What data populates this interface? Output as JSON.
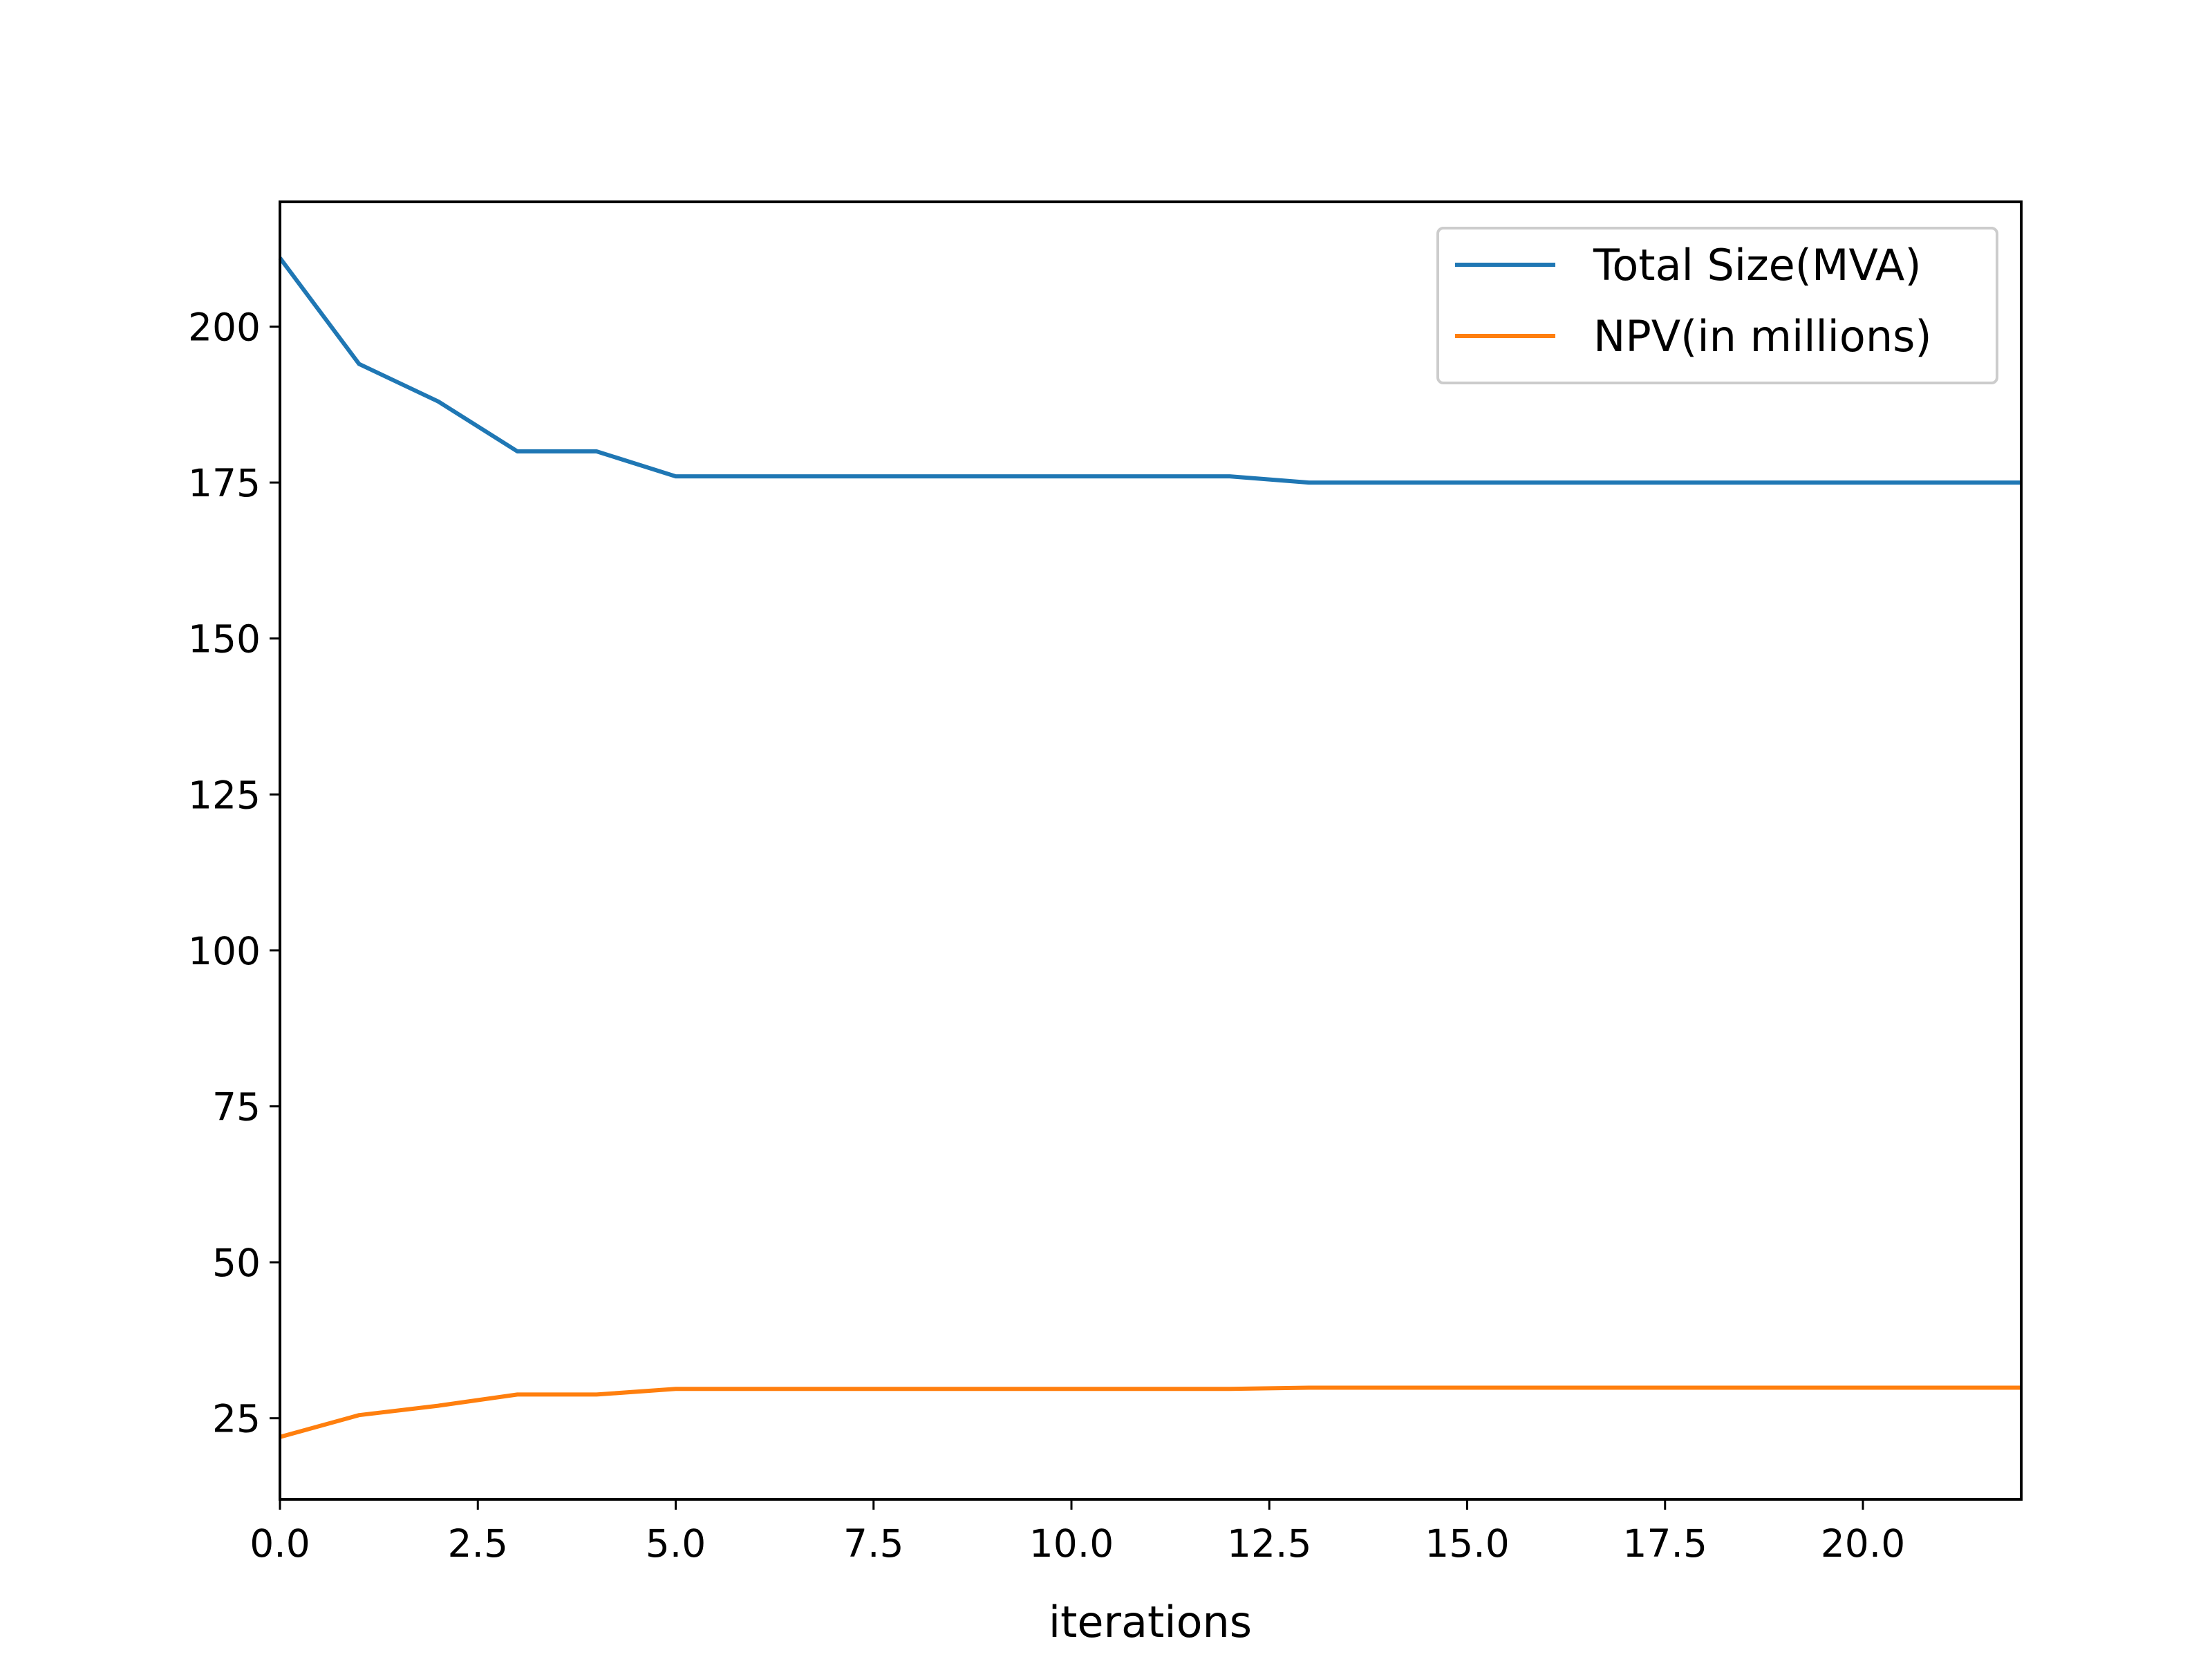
{
  "chart_data": {
    "type": "line",
    "title": "",
    "xlabel": "iterations",
    "ylabel": "",
    "xlim": [
      0,
      22
    ],
    "ylim": [
      12,
      220
    ],
    "xticks": [
      0,
      2.5,
      5,
      7.5,
      10,
      12.5,
      15,
      17.5,
      20
    ],
    "xtick_labels": [
      "0.0",
      "2.5",
      "5.0",
      "7.5",
      "10.0",
      "12.5",
      "15.0",
      "17.5",
      "20.0"
    ],
    "yticks": [
      25,
      50,
      75,
      100,
      125,
      150,
      175,
      200
    ],
    "ytick_labels": [
      "25",
      "50",
      "75",
      "100",
      "125",
      "150",
      "175",
      "200"
    ],
    "grid": false,
    "legend_position": "top-right",
    "x": [
      0,
      1,
      2,
      3,
      4,
      5,
      6,
      7,
      8,
      9,
      10,
      11,
      12,
      13,
      14,
      15,
      16,
      17,
      18,
      19,
      20,
      21,
      22
    ],
    "series": [
      {
        "name": "Total Size(MVA)",
        "color": "#1f77b4",
        "values": [
          211,
          194,
          188,
          180,
          180,
          176,
          176,
          176,
          176,
          176,
          176,
          176,
          176,
          175,
          175,
          175,
          175,
          175,
          175,
          175,
          175,
          175,
          175
        ]
      },
      {
        "name": "NPV(in millions)",
        "color": "#ff7f0e",
        "values": [
          22,
          25.5,
          27,
          28.8,
          28.8,
          29.7,
          29.7,
          29.7,
          29.7,
          29.7,
          29.7,
          29.7,
          29.7,
          29.9,
          29.9,
          29.9,
          29.9,
          29.9,
          29.9,
          29.9,
          29.9,
          29.9,
          29.9
        ]
      }
    ]
  }
}
